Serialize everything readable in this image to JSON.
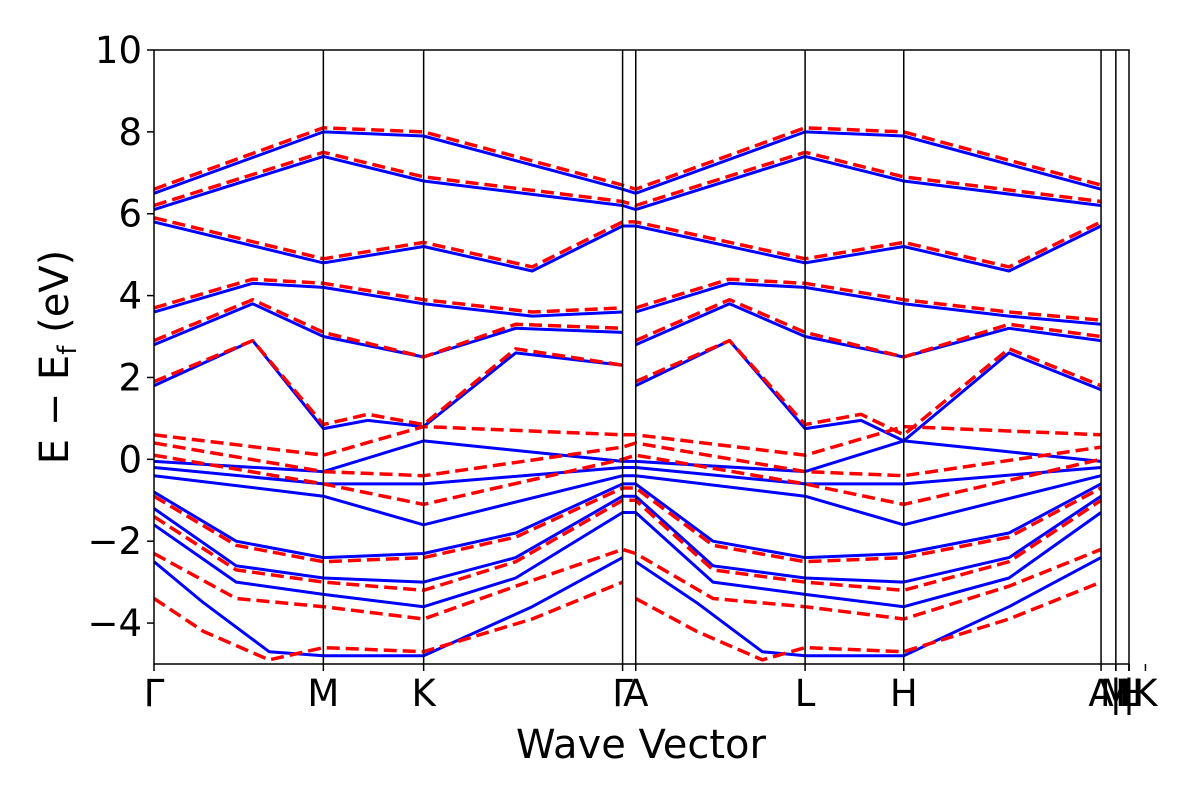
{
  "chart_data": {
    "type": "line",
    "title": "",
    "xlabel": "Wave Vector",
    "ylabel": {
      "main": "E − E",
      "sub": "f",
      "unit": " (eV)"
    },
    "ylim": [
      -5,
      10
    ],
    "yticks": [
      -4,
      -2,
      0,
      2,
      4,
      6,
      8,
      10
    ],
    "ytick_labels": [
      "−4",
      "−2",
      "0",
      "2",
      "4",
      "6",
      "8",
      "10"
    ],
    "xlim": [
      0,
      5.93
    ],
    "kpoints": [
      {
        "pos": 0.0,
        "label": "Γ"
      },
      {
        "pos": 1.03,
        "label": "M"
      },
      {
        "pos": 1.64,
        "label": "K"
      },
      {
        "pos": 2.85,
        "label": "Γ"
      },
      {
        "pos": 2.93,
        "label": "A"
      },
      {
        "pos": 3.96,
        "label": "L"
      },
      {
        "pos": 4.56,
        "label": "H"
      },
      {
        "pos": 5.76,
        "label": "A"
      },
      {
        "pos": 5.85,
        "label": "M"
      },
      {
        "pos": 5.85,
        "label": "|"
      },
      {
        "pos": 5.93,
        "label": "L"
      },
      {
        "pos": 5.93,
        "label": "H"
      },
      {
        "pos": 5.93,
        "label": "|"
      },
      {
        "pos": 6.03,
        "label": "K"
      }
    ],
    "series": [
      {
        "style": "solid",
        "color": "#0000ff",
        "bands": [
          {
            "x": [
              0,
              1.03,
              1.64,
              2.85,
              2.93,
              3.96,
              4.56,
              5.76
            ],
            "y": [
              -0.05,
              -0.3,
              0.45,
              -0.05,
              -0.05,
              -0.3,
              0.45,
              -0.05
            ]
          },
          {
            "x": [
              0,
              1.03,
              1.64,
              2.85,
              2.93,
              3.96,
              4.56,
              5.76
            ],
            "y": [
              -0.2,
              -0.6,
              -0.6,
              -0.2,
              -0.2,
              -0.6,
              -0.6,
              -0.2
            ]
          },
          {
            "x": [
              0,
              1.03,
              1.64,
              2.85,
              2.93,
              3.96,
              4.56,
              5.76
            ],
            "y": [
              -0.4,
              -0.9,
              -1.6,
              -0.4,
              -0.4,
              -0.9,
              -1.6,
              -0.4
            ]
          },
          {
            "x": [
              0,
              0.5,
              1.03,
              1.64,
              2.2,
              2.85,
              2.93,
              3.4,
              3.96,
              4.56,
              5.2,
              5.76
            ],
            "y": [
              -0.8,
              -2.0,
              -2.4,
              -2.3,
              -1.8,
              -0.6,
              -0.6,
              -2.0,
              -2.4,
              -2.3,
              -1.8,
              -0.6
            ]
          },
          {
            "x": [
              0,
              0.5,
              1.03,
              1.64,
              2.2,
              2.85,
              2.93,
              3.4,
              3.96,
              4.56,
              5.2,
              5.76
            ],
            "y": [
              -1.2,
              -2.6,
              -2.9,
              -3.0,
              -2.4,
              -0.9,
              -0.9,
              -2.6,
              -2.9,
              -3.0,
              -2.4,
              -0.9
            ]
          },
          {
            "x": [
              0,
              0.5,
              1.03,
              1.64,
              2.2,
              2.85,
              2.93,
              3.4,
              3.96,
              4.56,
              5.2,
              5.76
            ],
            "y": [
              -1.6,
              -3.0,
              -3.3,
              -3.6,
              -2.9,
              -1.3,
              -1.3,
              -3.0,
              -3.3,
              -3.6,
              -2.9,
              -1.3
            ]
          },
          {
            "x": [
              0,
              0.3,
              0.7,
              1.03,
              1.64,
              2.3,
              2.85
            ],
            "y": [
              -2.5,
              -3.5,
              -4.7,
              -4.8,
              -4.8,
              -3.6,
              -2.4
            ]
          },
          {
            "x": [
              2.93,
              3.3,
              3.7,
              3.96,
              4.56,
              5.2,
              5.76
            ],
            "y": [
              -2.5,
              -3.5,
              -4.7,
              -4.8,
              -4.8,
              -3.6,
              -2.4
            ]
          },
          {
            "x": [
              0,
              0.6,
              1.03,
              1.3,
              1.64,
              2.2,
              2.85
            ],
            "y": [
              1.8,
              2.9,
              0.75,
              0.95,
              0.8,
              2.6,
              2.3
            ]
          },
          {
            "x": [
              2.93,
              3.5,
              3.96,
              4.3,
              4.56,
              5.2,
              5.76
            ],
            "y": [
              1.8,
              2.9,
              0.75,
              0.95,
              0.45,
              2.6,
              1.7
            ]
          },
          {
            "x": [
              0,
              0.6,
              1.03,
              1.64,
              2.2,
              2.85
            ],
            "y": [
              2.8,
              3.8,
              3.0,
              2.5,
              3.2,
              3.1
            ]
          },
          {
            "x": [
              2.93,
              3.5,
              3.96,
              4.56,
              5.2,
              5.76
            ],
            "y": [
              2.8,
              3.8,
              3.0,
              2.5,
              3.2,
              2.9
            ]
          },
          {
            "x": [
              0,
              0.6,
              1.03,
              1.64,
              2.3,
              2.85
            ],
            "y": [
              3.6,
              4.3,
              4.2,
              3.8,
              3.5,
              3.6
            ]
          },
          {
            "x": [
              2.93,
              3.5,
              3.96,
              4.56,
              5.2,
              5.76
            ],
            "y": [
              3.6,
              4.3,
              4.2,
              3.8,
              3.5,
              3.3
            ]
          },
          {
            "x": [
              0,
              1.03,
              1.64,
              2.3,
              2.85,
              2.93,
              3.96,
              4.56,
              5.2,
              5.76
            ],
            "y": [
              5.8,
              4.8,
              5.2,
              4.6,
              5.7,
              5.7,
              4.8,
              5.2,
              4.6,
              5.7
            ]
          },
          {
            "x": [
              0,
              1.03,
              1.64,
              2.85,
              2.93,
              3.96,
              4.56,
              5.76
            ],
            "y": [
              6.1,
              7.4,
              6.8,
              6.2,
              6.1,
              7.4,
              6.8,
              6.2
            ]
          },
          {
            "x": [
              0,
              1.03,
              1.64,
              2.85,
              2.93,
              3.96,
              4.56,
              5.76
            ],
            "y": [
              6.5,
              8.0,
              7.9,
              6.6,
              6.5,
              8.0,
              7.9,
              6.6
            ]
          }
        ]
      },
      {
        "style": "dashed",
        "color": "#ff0000",
        "bands": [
          {
            "x": [
              0,
              1.03,
              1.64,
              2.85,
              2.93,
              3.96,
              4.56,
              5.76
            ],
            "y": [
              0.6,
              0.1,
              0.8,
              0.6,
              0.6,
              0.1,
              0.8,
              0.6
            ]
          },
          {
            "x": [
              0,
              1.03,
              1.64,
              2.85,
              2.93,
              3.96,
              4.56,
              5.76
            ],
            "y": [
              0.4,
              -0.3,
              -0.4,
              0.3,
              0.4,
              -0.3,
              -0.4,
              0.3
            ]
          },
          {
            "x": [
              0,
              1.03,
              1.64,
              2.85,
              2.93,
              3.96,
              4.56,
              5.76
            ],
            "y": [
              0.1,
              -0.6,
              -1.1,
              0.0,
              0.1,
              -0.6,
              -1.1,
              0.0
            ]
          },
          {
            "x": [
              0,
              0.5,
              1.03,
              1.64,
              2.2,
              2.85,
              2.93,
              3.4,
              3.96,
              4.56,
              5.2,
              5.76
            ],
            "y": [
              -0.9,
              -2.1,
              -2.5,
              -2.4,
              -1.9,
              -0.7,
              -0.7,
              -2.1,
              -2.5,
              -2.4,
              -1.9,
              -0.7
            ]
          },
          {
            "x": [
              0,
              0.5,
              1.03,
              1.64,
              2.2,
              2.85,
              2.93,
              3.4,
              3.96,
              4.56,
              5.2,
              5.76
            ],
            "y": [
              -1.4,
              -2.7,
              -3.0,
              -3.2,
              -2.5,
              -1.0,
              -1.0,
              -2.7,
              -3.0,
              -3.2,
              -2.5,
              -1.0
            ]
          },
          {
            "x": [
              0,
              0.5,
              1.03,
              1.64,
              2.2,
              2.85,
              2.93,
              3.4,
              3.96,
              4.56,
              5.2,
              5.76
            ],
            "y": [
              -2.3,
              -3.4,
              -3.6,
              -3.9,
              -3.1,
              -2.2,
              -2.3,
              -3.4,
              -3.6,
              -3.9,
              -3.1,
              -2.2
            ]
          },
          {
            "x": [
              0,
              0.3,
              0.7,
              1.03,
              1.64,
              2.3,
              2.85
            ],
            "y": [
              -3.4,
              -4.2,
              -4.9,
              -4.6,
              -4.7,
              -3.9,
              -3.0
            ]
          },
          {
            "x": [
              2.93,
              3.3,
              3.7,
              3.96,
              4.56,
              5.2,
              5.76
            ],
            "y": [
              -3.4,
              -4.2,
              -4.9,
              -4.6,
              -4.7,
              -3.9,
              -3.0
            ]
          },
          {
            "x": [
              0,
              0.6,
              1.03,
              1.3,
              1.64,
              2.2,
              2.85
            ],
            "y": [
              1.9,
              2.9,
              0.85,
              1.1,
              0.85,
              2.7,
              2.3
            ]
          },
          {
            "x": [
              2.93,
              3.5,
              3.96,
              4.3,
              4.56,
              5.2,
              5.76
            ],
            "y": [
              1.9,
              2.9,
              0.85,
              1.1,
              0.6,
              2.7,
              1.8
            ]
          },
          {
            "x": [
              0,
              0.6,
              1.03,
              1.64,
              2.2,
              2.85
            ],
            "y": [
              2.9,
              3.9,
              3.1,
              2.5,
              3.3,
              3.2
            ]
          },
          {
            "x": [
              2.93,
              3.5,
              3.96,
              4.56,
              5.2,
              5.76
            ],
            "y": [
              2.9,
              3.9,
              3.1,
              2.5,
              3.3,
              3.0
            ]
          },
          {
            "x": [
              0,
              0.6,
              1.03,
              1.64,
              2.3,
              2.85
            ],
            "y": [
              3.7,
              4.4,
              4.3,
              3.9,
              3.6,
              3.7
            ]
          },
          {
            "x": [
              2.93,
              3.5,
              3.96,
              4.56,
              5.2,
              5.76
            ],
            "y": [
              3.7,
              4.4,
              4.3,
              3.9,
              3.6,
              3.4
            ]
          },
          {
            "x": [
              0,
              1.03,
              1.64,
              2.3,
              2.85,
              2.93,
              3.96,
              4.56,
              5.2,
              5.76
            ],
            "y": [
              5.9,
              4.9,
              5.3,
              4.7,
              5.8,
              5.8,
              4.9,
              5.3,
              4.7,
              5.8
            ]
          },
          {
            "x": [
              0,
              1.03,
              1.64,
              2.85,
              2.93,
              3.96,
              4.56,
              5.76
            ],
            "y": [
              6.2,
              7.5,
              6.9,
              6.3,
              6.2,
              7.5,
              6.9,
              6.3
            ]
          },
          {
            "x": [
              0,
              1.03,
              1.64,
              2.85,
              2.93,
              3.96,
              4.56,
              5.76
            ],
            "y": [
              6.6,
              8.1,
              8.0,
              6.7,
              6.6,
              8.1,
              8.0,
              6.7
            ]
          }
        ]
      }
    ]
  }
}
